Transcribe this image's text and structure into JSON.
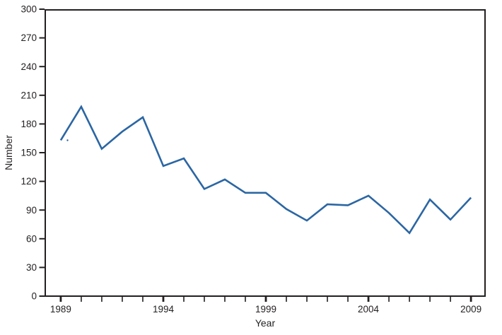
{
  "page": {
    "background": "#ffffff"
  },
  "colors": {
    "line": "#2b66a3",
    "axis": "#231f20",
    "text": "#231f20",
    "background": "#ffffff"
  },
  "chart_data": {
    "type": "line",
    "title": "",
    "xlabel": "Year",
    "ylabel": "Number",
    "x": [
      1989,
      1990,
      1991,
      1992,
      1993,
      1994,
      1995,
      1996,
      1997,
      1998,
      1999,
      2000,
      2001,
      2002,
      2003,
      2004,
      2005,
      2006,
      2007,
      2008,
      2009
    ],
    "series": [
      {
        "name": "Number",
        "color": "#2b66a3",
        "values": [
          163,
          198,
          154,
          172,
          187,
          136,
          144,
          112,
          122,
          108,
          108,
          91,
          79,
          96,
          95,
          105,
          87,
          66,
          101,
          80,
          103
        ]
      }
    ],
    "xlim": [
      1988.21,
      2009.72
    ],
    "ylim": [
      0,
      300
    ],
    "yticks": [
      0,
      30,
      60,
      90,
      120,
      150,
      180,
      210,
      240,
      270,
      300
    ],
    "xticks_minor": [
      1989,
      1990,
      1991,
      1992,
      1993,
      1994,
      1995,
      1996,
      1997,
      1998,
      1999,
      2000,
      2001,
      2002,
      2003,
      2004,
      2005,
      2006,
      2007,
      2008,
      2009
    ],
    "xticks_labeled": [
      1989,
      1994,
      1999,
      2004,
      2009
    ],
    "grid": false,
    "legend": "none"
  }
}
